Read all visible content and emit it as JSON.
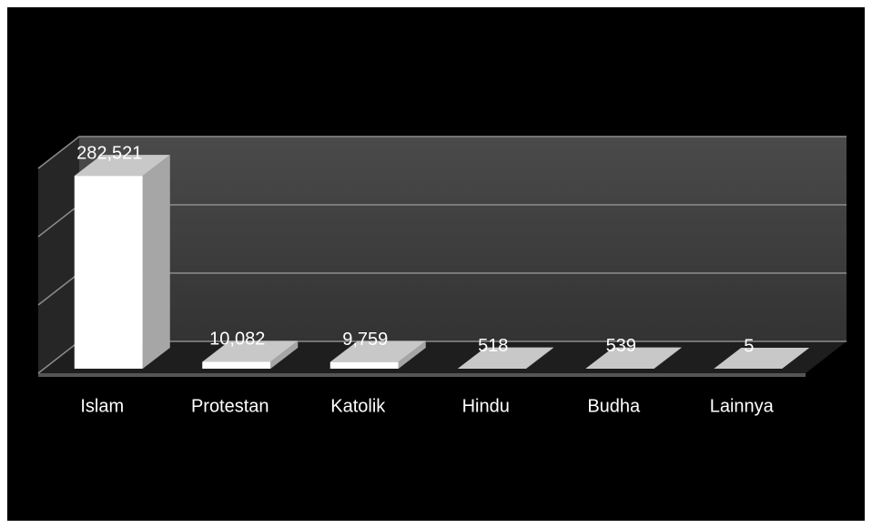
{
  "chart_data": {
    "type": "bar3d",
    "categories": [
      "Islam",
      "Protestan",
      "Katolik",
      "Hindu",
      "Budha",
      "Lainnya"
    ],
    "values": [
      282521,
      10082,
      9759,
      518,
      539,
      5
    ],
    "value_labels": [
      "282,521",
      "10,082",
      "9,759",
      "518",
      "539",
      "5"
    ],
    "color": "#ffffff",
    "ylim": [
      0,
      300000
    ],
    "yticks": [
      0,
      100000,
      200000,
      300000
    ],
    "grid": true
  }
}
